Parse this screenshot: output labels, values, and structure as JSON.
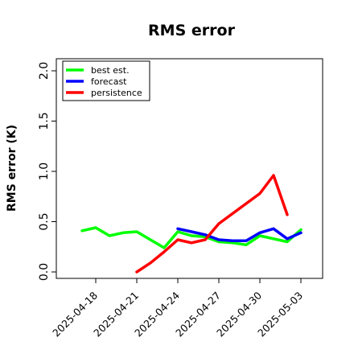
{
  "chart_data": {
    "type": "line",
    "title": "RMS error",
    "xlabel": "",
    "ylabel": "RMS error (K)",
    "ylim": [
      -0.05,
      2.1
    ],
    "yticks": [
      "0.0",
      "0.5",
      "1.0",
      "1.5",
      "2.0"
    ],
    "xticks": [
      "2025-04-18",
      "2025-04-21",
      "2025-04-24",
      "2025-04-27",
      "2025-04-30",
      "2025-05-03"
    ],
    "highlighted_xtick": "2025-04-24",
    "highlight_color": "#228B22",
    "grid": false,
    "legend_position": "top-left",
    "series": [
      {
        "name": "best est.",
        "color": "#00ff00",
        "points": [
          [
            "2025-04-17",
            0.41
          ],
          [
            "2025-04-18",
            0.44
          ],
          [
            "2025-04-19",
            0.36
          ],
          [
            "2025-04-20",
            0.39
          ],
          [
            "2025-04-21",
            0.4
          ],
          [
            "2025-04-22",
            0.32
          ],
          [
            "2025-04-23",
            0.24
          ],
          [
            "2025-04-24",
            0.4
          ],
          [
            "2025-04-25",
            0.36
          ],
          [
            "2025-04-26",
            0.35
          ],
          [
            "2025-04-27",
            0.3
          ],
          [
            "2025-04-28",
            0.29
          ],
          [
            "2025-04-29",
            0.27
          ],
          [
            "2025-04-30",
            0.36
          ],
          [
            "2025-05-01",
            0.33
          ],
          [
            "2025-05-02",
            0.3
          ],
          [
            "2025-05-03",
            0.42
          ]
        ]
      },
      {
        "name": "forecast",
        "color": "#0000ff",
        "points": [
          [
            "2025-04-24",
            0.43
          ],
          [
            "2025-04-25",
            0.4
          ],
          [
            "2025-04-26",
            0.37
          ],
          [
            "2025-04-27",
            0.32
          ],
          [
            "2025-04-28",
            0.31
          ],
          [
            "2025-04-29",
            0.31
          ],
          [
            "2025-04-30",
            0.39
          ],
          [
            "2025-05-01",
            0.43
          ],
          [
            "2025-05-02",
            0.33
          ],
          [
            "2025-05-03",
            0.39
          ]
        ]
      },
      {
        "name": "persistence",
        "color": "#ff0000",
        "points": [
          [
            "2025-04-21",
            0.0
          ],
          [
            "2025-04-22",
            0.09
          ],
          [
            "2025-04-23",
            0.2
          ],
          [
            "2025-04-24",
            0.32
          ],
          [
            "2025-04-25",
            0.29
          ],
          [
            "2025-04-26",
            0.32
          ],
          [
            "2025-04-27",
            0.48
          ],
          [
            "2025-04-28",
            0.58
          ],
          [
            "2025-04-29",
            0.68
          ],
          [
            "2025-04-30",
            0.78
          ],
          [
            "2025-05-01",
            0.96
          ],
          [
            "2025-05-02",
            0.57
          ]
        ]
      }
    ]
  }
}
